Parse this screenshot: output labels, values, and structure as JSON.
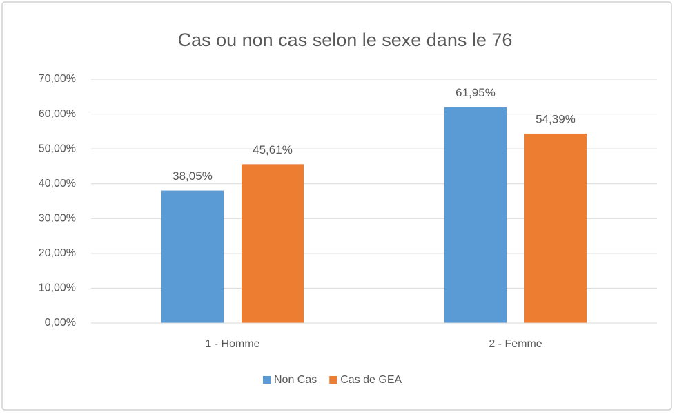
{
  "chart_data": {
    "type": "bar",
    "title": "Cas ou non cas selon le sexe dans le 76",
    "categories": [
      "1 - Homme",
      "2 - Femme"
    ],
    "series": [
      {
        "name": "Non Cas",
        "color": "#5b9bd5",
        "values": [
          38.05,
          61.95
        ],
        "value_labels": [
          "38,05%",
          "61,95%"
        ]
      },
      {
        "name": "Cas de GEA",
        "color": "#ed7d31",
        "values": [
          45.61,
          54.39
        ],
        "value_labels": [
          "45,61%",
          "54,39%"
        ]
      }
    ],
    "ylim": [
      0,
      70
    ],
    "yticks": [
      {
        "value": 0,
        "label": "0,00%"
      },
      {
        "value": 10,
        "label": "10,00%"
      },
      {
        "value": 20,
        "label": "20,00%"
      },
      {
        "value": 30,
        "label": "30,00%"
      },
      {
        "value": 40,
        "label": "40,00%"
      },
      {
        "value": 50,
        "label": "50,00%"
      },
      {
        "value": 60,
        "label": "60,00%"
      },
      {
        "value": 70,
        "label": "70,00%"
      }
    ],
    "grid": true,
    "legend": "bottom"
  }
}
